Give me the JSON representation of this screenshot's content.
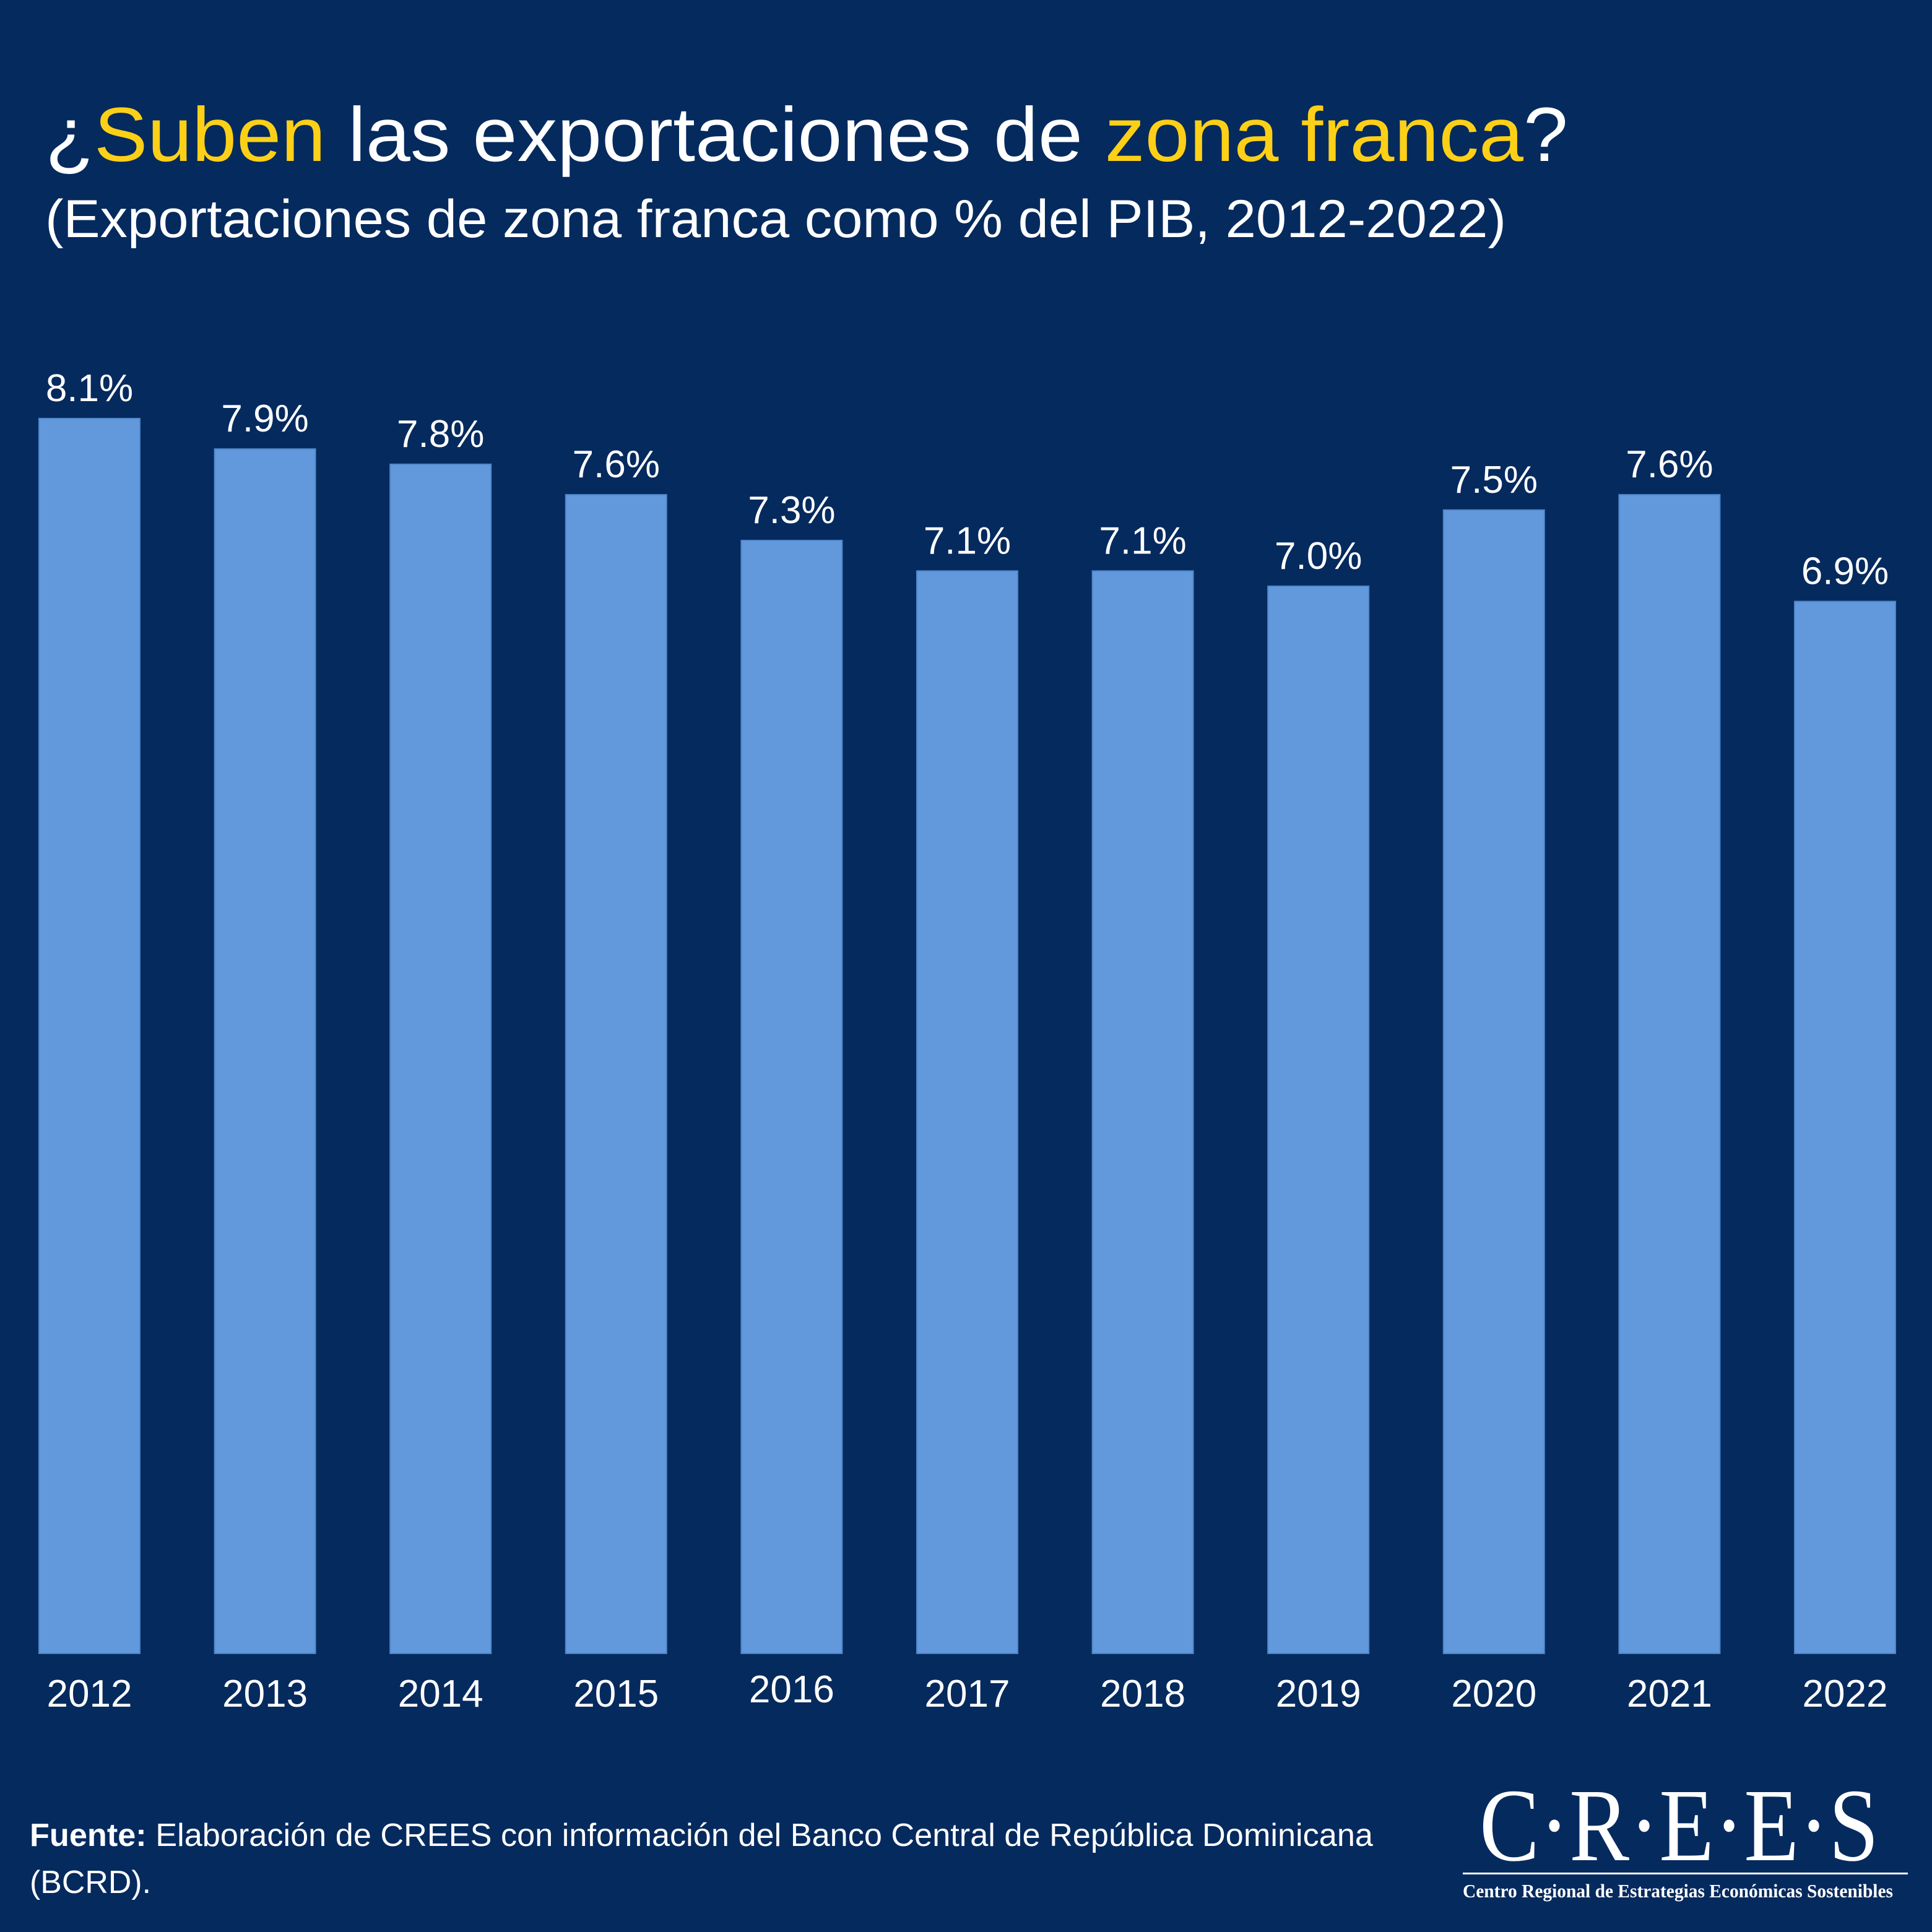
{
  "header": {
    "title_parts": {
      "open": "¿",
      "hl1": "Suben",
      "mid": " las exportaciones de ",
      "hl2": "zona franca",
      "close": "?"
    },
    "subtitle": "(Exportaciones de zona franca como % del PIB, 2012-2022)"
  },
  "colors": {
    "background": "#052A5E",
    "bar": "#6199DC",
    "highlight": "#FDD017",
    "text": "#FFFFFF"
  },
  "chart_data": {
    "type": "bar",
    "title": "¿Suben las exportaciones de zona franca?",
    "subtitle": "(Exportaciones de zona franca como % del PIB, 2012-2022)",
    "xlabel": "",
    "ylabel": "",
    "ylim": [
      0,
      8.1
    ],
    "grid": false,
    "legend": "none",
    "categories": [
      "2012",
      "2013",
      "2014",
      "2015",
      "2016",
      "2017",
      "2018",
      "2019",
      "2020",
      "2021",
      "2022"
    ],
    "values": [
      8.1,
      7.9,
      7.8,
      7.6,
      7.3,
      7.1,
      7.1,
      7.0,
      7.5,
      7.6,
      6.9
    ],
    "data_labels": [
      "8.1%",
      "7.9%",
      "7.8%",
      "7.6%",
      "7.3%",
      "7.1%",
      "7.1%",
      "7.0%",
      "7.5%",
      "7.6%",
      "6.9%"
    ]
  },
  "footer": {
    "source_label": "Fuente:",
    "source_text": " Elaboración de CREES con información del Banco Central de República Dominicana",
    "source_text_line2": "(BCRD)."
  },
  "logo": {
    "wordmark": "C·R·E·E·S",
    "tagline": "Centro Regional de Estrategias Económicas Sostenibles"
  }
}
